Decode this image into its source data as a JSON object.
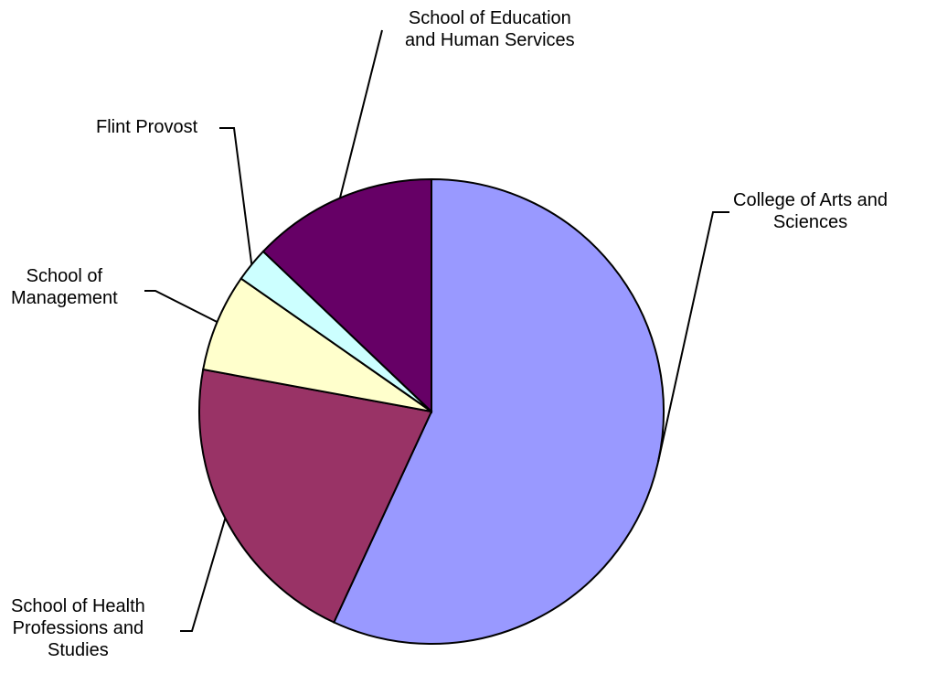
{
  "chart_data": {
    "type": "pie",
    "start_angle_deg": 90,
    "direction": "clockwise",
    "series": [
      {
        "slices": [
          {
            "label": [
              "College of Arts and",
              "Sciences"
            ],
            "value": 56.9,
            "color": "#9999ff"
          },
          {
            "label": [
              "School of Health",
              "Professions and",
              "Studies"
            ],
            "value": 21.0,
            "color": "#993366"
          },
          {
            "label": [
              "School of",
              "Management"
            ],
            "value": 6.8,
            "color": "#ffffcc"
          },
          {
            "label": [
              "Flint Provost"
            ],
            "value": 2.4,
            "color": "#ccffff"
          },
          {
            "label": [
              "School of Education",
              "and Human Services"
            ],
            "value": 12.9,
            "color": "#660066"
          }
        ]
      }
    ]
  }
}
